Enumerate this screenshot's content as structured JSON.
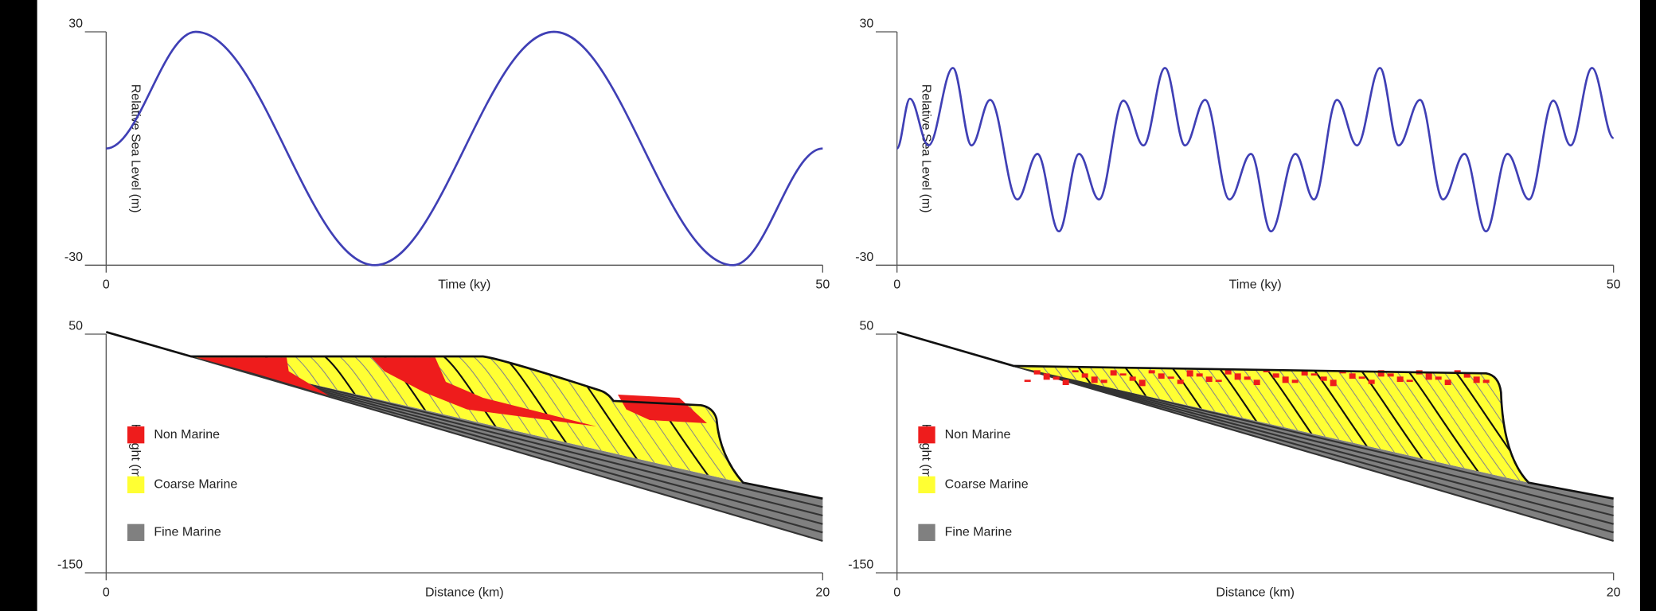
{
  "chart_data": [
    {
      "type": "line",
      "x": [
        0,
        6.25,
        18.75,
        31.25,
        43.75,
        50
      ],
      "values": [
        0,
        30,
        -30,
        30,
        -30,
        0
      ],
      "color": "#3f3fb5",
      "xlim": [
        0,
        50
      ],
      "ylim": [
        -30,
        30
      ],
      "xticks": [
        0,
        50
      ],
      "yticks": [
        -30,
        30
      ],
      "x_label": "Time (ky)",
      "y_label": "Relative Sea Level (m)"
    },
    {
      "type": "line",
      "x": [
        0,
        0.9,
        2.2,
        3.9,
        5.2,
        6.5,
        8.4,
        9.8,
        11.3,
        12.7,
        14.1,
        15.8,
        17.2,
        18.7,
        20.1,
        21.5,
        23.2,
        24.7,
        26.1,
        27.8,
        29.1,
        30.7,
        32.1,
        33.7,
        35.0,
        36.5,
        38.1,
        39.6,
        41.1,
        42.6,
        44.1,
        45.8,
        47.0,
        48.5,
        50
      ],
      "values": [
        0,
        12.8,
        0.8,
        20.7,
        0.8,
        12.5,
        -13.1,
        -1.4,
        -21.3,
        -1.4,
        -13.1,
        12.3,
        0.8,
        20.7,
        0.8,
        12.5,
        -13.1,
        -1.4,
        -21.3,
        -1.4,
        -13.1,
        12.5,
        0.8,
        20.7,
        0.8,
        12.5,
        -13.1,
        -1.4,
        -21.3,
        -1.4,
        -13.1,
        12.3,
        0.8,
        20.7,
        2.7
      ],
      "color": "#3f3fb5",
      "xlim": [
        0,
        50
      ],
      "ylim": [
        -30,
        30
      ],
      "xticks": [
        0,
        50
      ],
      "yticks": [
        -30,
        30
      ],
      "x_label": "Time (ky)",
      "y_label": "Relative Sea Level (m)"
    },
    {
      "type": "section",
      "xlim": [
        0,
        20
      ],
      "ylim": [
        -150,
        50
      ],
      "xticks": [
        0,
        20
      ],
      "yticks": [
        -150,
        50
      ],
      "x_label": "Distance (km)",
      "y_label": "Height (m)",
      "series": [
        {
          "name": "Non Marine",
          "color": "#ee1c1c"
        },
        {
          "name": "Coarse Marine",
          "color": "#ffff33"
        },
        {
          "name": "Fine Marine",
          "color": "#808080"
        }
      ]
    },
    {
      "type": "section",
      "xlim": [
        0,
        20
      ],
      "ylim": [
        -150,
        50
      ],
      "xticks": [
        0,
        20
      ],
      "yticks": [
        -150,
        50
      ],
      "x_label": "Distance (km)",
      "y_label": "Height (m)",
      "series": [
        {
          "name": "Non Marine",
          "color": "#ee1c1c"
        },
        {
          "name": "Coarse Marine",
          "color": "#ffff33"
        },
        {
          "name": "Fine Marine",
          "color": "#808080"
        }
      ]
    }
  ]
}
